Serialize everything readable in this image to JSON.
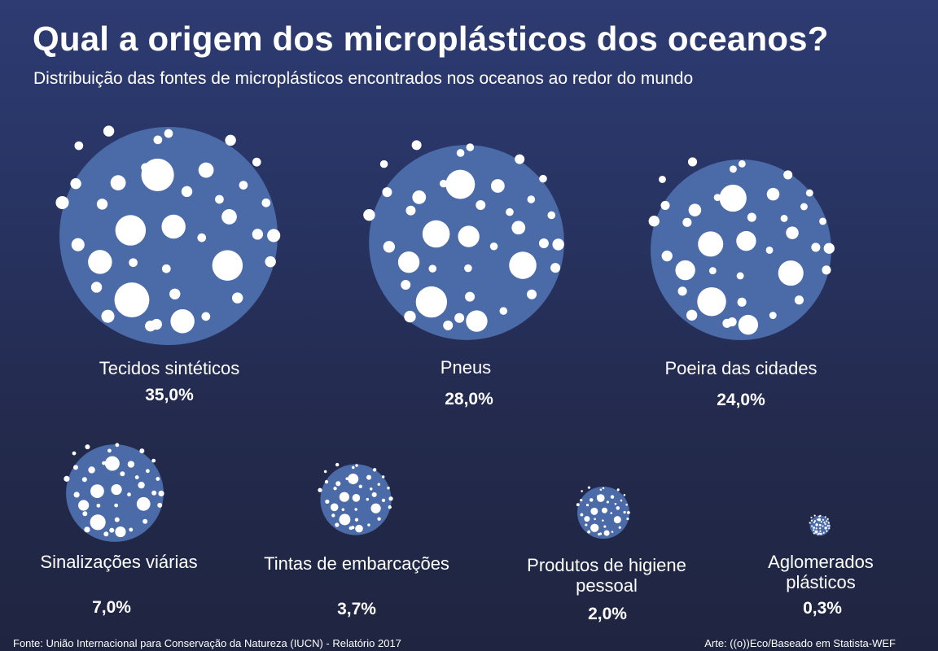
{
  "chart_data": {
    "type": "bubble",
    "title": "Qual a origem dos microplásticos dos oceanos?",
    "subtitle": "Distribuição das fontes de microplásticos encontrados nos oceanos ao redor do mundo",
    "unit": "%",
    "categories": [
      "Tecidos sintéticos",
      "Pneus",
      "Poeira das cidades",
      "Sinalizações viárias",
      "Tintas de embarcações",
      "Produtos de higiene pessoal",
      "Aglomerados plásticos"
    ],
    "values": [
      35.0,
      28.0,
      24.0,
      7.0,
      3.7,
      2.0,
      0.3
    ],
    "value_labels": [
      "35,0%",
      "28,0%",
      "24,0%",
      "7,0%",
      "3,7%",
      "2,0%",
      "0,3%"
    ],
    "bubble_color": "#4a6aa8",
    "dot_color": "#ffffff"
  },
  "source": "Fonte: União Internacional para Conservação da Natureza (IUCN) - Relatório 2017",
  "credit": "Arte: ((o))Eco/Baseado em Statista-WEF"
}
